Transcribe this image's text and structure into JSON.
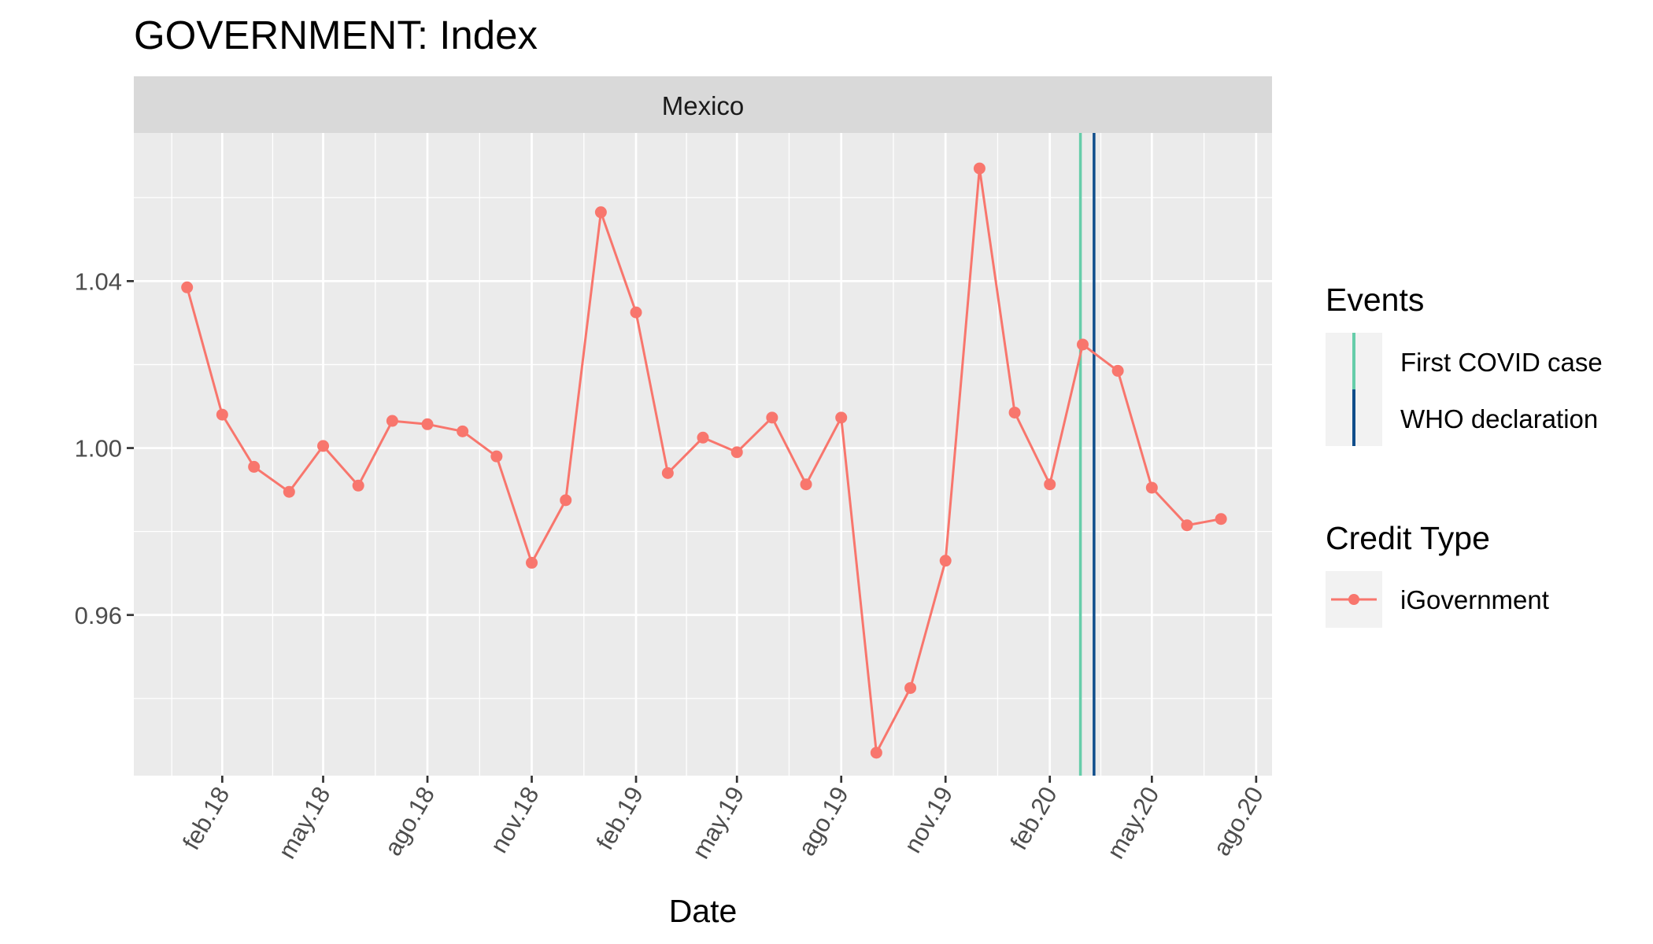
{
  "chart_data": {
    "type": "line",
    "title": "GOVERNMENT: Index",
    "facet": "Mexico",
    "xlabel": "Date",
    "ylabel": "",
    "x_ticks": [
      "feb.18",
      "may.18",
      "ago.18",
      "nov.18",
      "feb.19",
      "may.19",
      "ago.19",
      "nov.19",
      "feb.20",
      "may.20",
      "ago.20"
    ],
    "x_tick_dates": [
      "2018-02-01",
      "2018-05-01",
      "2018-08-01",
      "2018-11-01",
      "2019-02-01",
      "2019-05-01",
      "2019-08-01",
      "2019-11-01",
      "2020-02-01",
      "2020-05-01",
      "2020-08-01"
    ],
    "y_ticks": [
      "0.96",
      "1.00",
      "1.04"
    ],
    "y_tick_values": [
      0.96,
      1.0,
      1.04
    ],
    "xlim": [
      "2017-11-15",
      "2020-08-15"
    ],
    "ylim": [
      0.9215,
      1.0755
    ],
    "grid": true,
    "legend_placement": "right",
    "series": [
      {
        "name": "iGovernment",
        "color": "#F8766D",
        "points": [
          {
            "x": "2018-01-01",
            "y": 1.0385
          },
          {
            "x": "2018-02-01",
            "y": 1.008
          },
          {
            "x": "2018-03-01",
            "y": 0.9955
          },
          {
            "x": "2018-04-01",
            "y": 0.9895
          },
          {
            "x": "2018-05-01",
            "y": 1.0005
          },
          {
            "x": "2018-06-01",
            "y": 0.991
          },
          {
            "x": "2018-07-01",
            "y": 1.0065
          },
          {
            "x": "2018-08-01",
            "y": 1.0057
          },
          {
            "x": "2018-09-01",
            "y": 1.004
          },
          {
            "x": "2018-10-01",
            "y": 0.998
          },
          {
            "x": "2018-11-01",
            "y": 0.9725
          },
          {
            "x": "2018-12-01",
            "y": 0.9875
          },
          {
            "x": "2019-01-01",
            "y": 1.0565
          },
          {
            "x": "2019-02-01",
            "y": 1.0325
          },
          {
            "x": "2019-03-01",
            "y": 0.994
          },
          {
            "x": "2019-04-01",
            "y": 1.0025
          },
          {
            "x": "2019-05-01",
            "y": 0.999
          },
          {
            "x": "2019-06-01",
            "y": 1.0073
          },
          {
            "x": "2019-07-01",
            "y": 0.9913
          },
          {
            "x": "2019-08-01",
            "y": 1.0073
          },
          {
            "x": "2019-09-01",
            "y": 0.927
          },
          {
            "x": "2019-10-01",
            "y": 0.9425
          },
          {
            "x": "2019-11-01",
            "y": 0.973
          },
          {
            "x": "2019-12-01",
            "y": 1.067
          },
          {
            "x": "2020-01-01",
            "y": 1.0085
          },
          {
            "x": "2020-02-01",
            "y": 0.9913
          },
          {
            "x": "2020-03-01",
            "y": 1.0248
          },
          {
            "x": "2020-04-01",
            "y": 1.0185
          },
          {
            "x": "2020-05-01",
            "y": 0.9905
          },
          {
            "x": "2020-06-01",
            "y": 0.9815
          },
          {
            "x": "2020-07-01",
            "y": 0.983
          }
        ]
      }
    ],
    "events": [
      {
        "name": "First COVID case",
        "date": "2020-02-28",
        "color": "#66CDAA"
      },
      {
        "name": "WHO declaration",
        "date": "2020-03-11",
        "color": "#104E8B"
      }
    ],
    "legends": [
      {
        "title": "Events",
        "items": [
          "First COVID case",
          "WHO declaration"
        ]
      },
      {
        "title": "Credit Type",
        "items": [
          "iGovernment"
        ]
      }
    ]
  }
}
